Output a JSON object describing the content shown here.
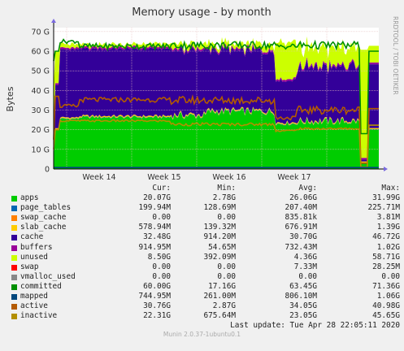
{
  "chart_data": {
    "type": "area",
    "title": "Memory usage - by month",
    "ylabel": "Bytes",
    "side_text": "RRDTOOL / TOBI OETIKER",
    "ylim": [
      0,
      72
    ],
    "yticks": [
      "0",
      "10 G",
      "20 G",
      "30 G",
      "40 G",
      "50 G",
      "60 G",
      "70 G"
    ],
    "x_categories": [
      "Week 14",
      "Week 15",
      "Week 16",
      "Week 17"
    ],
    "grid": true,
    "columns": [
      "Cur:",
      "Min:",
      "Avg:",
      "Max:"
    ],
    "colors": {
      "apps": "#00cc00",
      "page_tables": "#0066b3",
      "swap_cache": "#ff8000",
      "slab_cache": "#ffcc00",
      "cache": "#330099",
      "buffers": "#990099",
      "unused": "#ccff00",
      "swap": "#ff0000",
      "vmalloc_used": "#888888",
      "committed": "#008f00",
      "mapped": "#00487d",
      "active": "#b35a00",
      "inactive": "#b38f00",
      "background": "#f0f0f0",
      "plot_bg": "#ffffff",
      "grid": "#e6c0c0"
    },
    "series": [
      {
        "name": "apps",
        "color": "#00cc00",
        "cur": "20.07G",
        "min": "2.78G",
        "avg": "26.06G",
        "max": "31.99G"
      },
      {
        "name": "page_tables",
        "color": "#0066b3",
        "cur": "199.94M",
        "min": "128.69M",
        "avg": "207.40M",
        "max": "225.71M"
      },
      {
        "name": "swap_cache",
        "color": "#ff8000",
        "cur": "0.00",
        "min": "0.00",
        "avg": "835.81k",
        "max": "3.81M"
      },
      {
        "name": "slab_cache",
        "color": "#ffcc00",
        "cur": "578.94M",
        "min": "139.32M",
        "avg": "676.91M",
        "max": "1.39G"
      },
      {
        "name": "cache",
        "color": "#330099",
        "cur": "32.48G",
        "min": "914.20M",
        "avg": "30.70G",
        "max": "46.72G"
      },
      {
        "name": "buffers",
        "color": "#990099",
        "cur": "914.95M",
        "min": "54.65M",
        "avg": "732.43M",
        "max": "1.02G"
      },
      {
        "name": "unused",
        "color": "#ccff00",
        "cur": "8.50G",
        "min": "392.09M",
        "avg": "4.36G",
        "max": "58.71G"
      },
      {
        "name": "swap",
        "color": "#ff0000",
        "cur": "0.00",
        "min": "0.00",
        "avg": "7.33M",
        "max": "28.25M"
      },
      {
        "name": "vmalloc_used",
        "color": "#888888",
        "cur": "0.00",
        "min": "0.00",
        "avg": "0.00",
        "max": "0.00"
      },
      {
        "name": "committed",
        "color": "#008f00",
        "cur": "60.00G",
        "min": "17.16G",
        "avg": "63.45G",
        "max": "71.36G"
      },
      {
        "name": "mapped",
        "color": "#00487d",
        "cur": "744.95M",
        "min": "261.00M",
        "avg": "806.10M",
        "max": "1.06G"
      },
      {
        "name": "active",
        "color": "#b35a00",
        "cur": "30.76G",
        "min": "2.87G",
        "avg": "34.05G",
        "max": "40.98G"
      },
      {
        "name": "inactive",
        "color": "#b38f00",
        "cur": "22.31G",
        "min": "675.64M",
        "avg": "23.05G",
        "max": "45.65G"
      }
    ],
    "last_update": "Last update: Tue Apr 28 22:05:11 2020",
    "footer": "Munin 2.0.37-1ubuntu0.1"
  }
}
